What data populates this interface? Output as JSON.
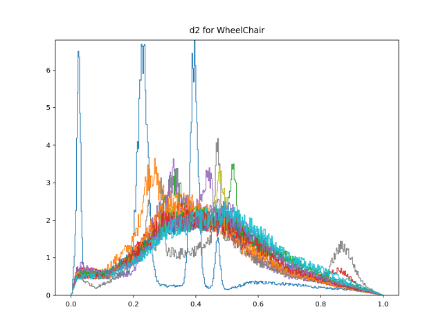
{
  "chart_data": {
    "type": "line",
    "step": true,
    "title": "d2 for WheelChair",
    "xlabel": "",
    "ylabel": "",
    "xlim": [
      -0.05,
      1.05
    ],
    "ylim": [
      0,
      6.8
    ],
    "xticks": [
      0.0,
      0.2,
      0.4,
      0.6,
      0.8,
      1.0
    ],
    "xtick_labels": [
      "0.0",
      "0.2",
      "0.4",
      "0.6",
      "0.8",
      "1.0"
    ],
    "yticks": [
      0,
      1,
      2,
      3,
      4,
      5,
      6
    ],
    "ytick_labels": [
      "0",
      "1",
      "2",
      "3",
      "4",
      "5",
      "6"
    ],
    "grid": false,
    "legend": "none",
    "series": [
      {
        "color": "#1f77b4",
        "peaks": [
          [
            0.025,
            5.5,
            0.006
          ],
          [
            0.23,
            5.9,
            0.016
          ],
          [
            0.395,
            6.4,
            0.012
          ],
          [
            0.47,
            1.3,
            0.008
          ]
        ],
        "baseline": [
          [
            0.0,
            0.0
          ],
          [
            0.01,
            0.6
          ],
          [
            0.06,
            0.5
          ],
          [
            0.15,
            0.6
          ],
          [
            0.3,
            0.25
          ],
          [
            0.36,
            0.25
          ],
          [
            0.43,
            0.2
          ],
          [
            0.5,
            0.15
          ],
          [
            0.58,
            0.35
          ],
          [
            0.7,
            0.3
          ],
          [
            0.8,
            0.2
          ],
          [
            0.9,
            0.15
          ],
          [
            1.0,
            0.0
          ]
        ]
      },
      {
        "color": "#ff7f0e",
        "peaks": [
          [
            0.25,
            1.0,
            0.02
          ]
        ],
        "baseline": [
          [
            0.0,
            0.0
          ],
          [
            0.02,
            0.7
          ],
          [
            0.1,
            0.6
          ],
          [
            0.2,
            1.4
          ],
          [
            0.27,
            2.6
          ],
          [
            0.35,
            2.5
          ],
          [
            0.45,
            2.1
          ],
          [
            0.55,
            1.2
          ],
          [
            0.65,
            0.7
          ],
          [
            0.8,
            0.35
          ],
          [
            0.95,
            0.1
          ],
          [
            1.0,
            0.0
          ]
        ]
      },
      {
        "color": "#2ca02c",
        "peaks": [
          [
            0.52,
            1.3,
            0.01
          ],
          [
            0.33,
            1.0,
            0.02
          ]
        ],
        "baseline": [
          [
            0.0,
            0.0
          ],
          [
            0.02,
            0.6
          ],
          [
            0.1,
            0.5
          ],
          [
            0.2,
            1.0
          ],
          [
            0.3,
            2.0
          ],
          [
            0.4,
            2.2
          ],
          [
            0.5,
            2.1
          ],
          [
            0.6,
            1.4
          ],
          [
            0.7,
            1.0
          ],
          [
            0.8,
            0.5
          ],
          [
            0.95,
            0.15
          ],
          [
            1.0,
            0.0
          ]
        ]
      },
      {
        "color": "#d62728",
        "peaks": [
          [
            0.86,
            0.3,
            0.03
          ]
        ],
        "baseline": [
          [
            0.0,
            0.0
          ],
          [
            0.02,
            0.7
          ],
          [
            0.12,
            0.6
          ],
          [
            0.22,
            1.3
          ],
          [
            0.3,
            2.2
          ],
          [
            0.4,
            2.1
          ],
          [
            0.5,
            1.7
          ],
          [
            0.6,
            1.0
          ],
          [
            0.7,
            0.7
          ],
          [
            0.78,
            0.5
          ],
          [
            0.9,
            0.3
          ],
          [
            1.0,
            0.0
          ]
        ]
      },
      {
        "color": "#9467bd",
        "peaks": [
          [
            0.33,
            1.0,
            0.015
          ],
          [
            0.44,
            1.2,
            0.012
          ]
        ],
        "baseline": [
          [
            0.0,
            0.0
          ],
          [
            0.03,
            0.8
          ],
          [
            0.1,
            0.5
          ],
          [
            0.2,
            0.6
          ],
          [
            0.28,
            2.2
          ],
          [
            0.4,
            2.3
          ],
          [
            0.52,
            2.2
          ],
          [
            0.58,
            1.0
          ],
          [
            0.7,
            0.5
          ],
          [
            0.85,
            0.3
          ],
          [
            1.0,
            0.0
          ]
        ]
      },
      {
        "color": "#8c564b",
        "peaks": [],
        "baseline": [
          [
            0.0,
            0.0
          ],
          [
            0.02,
            0.6
          ],
          [
            0.12,
            0.5
          ],
          [
            0.22,
            1.2
          ],
          [
            0.3,
            1.9
          ],
          [
            0.4,
            2.0
          ],
          [
            0.5,
            1.8
          ],
          [
            0.6,
            1.2
          ],
          [
            0.7,
            0.6
          ],
          [
            0.85,
            0.25
          ],
          [
            1.0,
            0.0
          ]
        ]
      },
      {
        "color": "#e377c2",
        "peaks": [],
        "baseline": [
          [
            0.0,
            0.0
          ],
          [
            0.02,
            0.5
          ],
          [
            0.12,
            0.5
          ],
          [
            0.22,
            1.1
          ],
          [
            0.3,
            2.0
          ],
          [
            0.4,
            2.2
          ],
          [
            0.5,
            2.0
          ],
          [
            0.6,
            1.3
          ],
          [
            0.7,
            0.6
          ],
          [
            0.85,
            0.3
          ],
          [
            1.0,
            0.0
          ]
        ]
      },
      {
        "color": "#7f7f7f",
        "peaks": [
          [
            0.29,
            1.8,
            0.006
          ],
          [
            0.47,
            2.4,
            0.008
          ],
          [
            0.87,
            0.9,
            0.03
          ],
          [
            0.25,
            1.0,
            0.008
          ]
        ],
        "baseline": [
          [
            0.0,
            0.0
          ],
          [
            0.02,
            0.5
          ],
          [
            0.08,
            0.2
          ],
          [
            0.15,
            0.5
          ],
          [
            0.25,
            1.3
          ],
          [
            0.35,
            1.1
          ],
          [
            0.4,
            1.2
          ],
          [
            0.5,
            1.6
          ],
          [
            0.6,
            0.9
          ],
          [
            0.72,
            0.5
          ],
          [
            0.8,
            0.4
          ],
          [
            0.9,
            0.4
          ],
          [
            1.0,
            0.0
          ]
        ]
      },
      {
        "color": "#bcbd22",
        "peaks": [
          [
            0.48,
            1.2,
            0.01
          ]
        ],
        "baseline": [
          [
            0.0,
            0.0
          ],
          [
            0.02,
            0.6
          ],
          [
            0.12,
            0.6
          ],
          [
            0.22,
            1.1
          ],
          [
            0.3,
            2.1
          ],
          [
            0.4,
            2.1
          ],
          [
            0.5,
            2.0
          ],
          [
            0.6,
            1.2
          ],
          [
            0.7,
            0.7
          ],
          [
            0.85,
            0.3
          ],
          [
            1.0,
            0.0
          ]
        ]
      },
      {
        "color": "#17becf",
        "peaks": [],
        "baseline": [
          [
            0.0,
            0.0
          ],
          [
            0.02,
            0.6
          ],
          [
            0.12,
            0.6
          ],
          [
            0.22,
            1.0
          ],
          [
            0.3,
            1.7
          ],
          [
            0.4,
            1.9
          ],
          [
            0.5,
            2.1
          ],
          [
            0.6,
            1.6
          ],
          [
            0.7,
            1.0
          ],
          [
            0.8,
            0.7
          ],
          [
            0.9,
            0.35
          ],
          [
            1.0,
            0.0
          ]
        ]
      },
      {
        "color": "#1f77b4",
        "peaks": [],
        "baseline": [
          [
            0.0,
            0.0
          ],
          [
            0.02,
            0.5
          ],
          [
            0.12,
            0.6
          ],
          [
            0.22,
            1.2
          ],
          [
            0.3,
            1.8
          ],
          [
            0.4,
            2.0
          ],
          [
            0.5,
            1.9
          ],
          [
            0.6,
            1.4
          ],
          [
            0.7,
            0.8
          ],
          [
            0.85,
            0.3
          ],
          [
            1.0,
            0.0
          ]
        ]
      },
      {
        "color": "#ff7f0e",
        "peaks": [],
        "baseline": [
          [
            0.0,
            0.0
          ],
          [
            0.02,
            0.6
          ],
          [
            0.12,
            0.5
          ],
          [
            0.22,
            1.3
          ],
          [
            0.3,
            2.3
          ],
          [
            0.4,
            2.2
          ],
          [
            0.5,
            1.8
          ],
          [
            0.6,
            1.1
          ],
          [
            0.7,
            0.6
          ],
          [
            0.85,
            0.25
          ],
          [
            1.0,
            0.0
          ]
        ]
      },
      {
        "color": "#2ca02c",
        "peaks": [],
        "baseline": [
          [
            0.0,
            0.0
          ],
          [
            0.02,
            0.6
          ],
          [
            0.12,
            0.6
          ],
          [
            0.22,
            1.1
          ],
          [
            0.3,
            1.9
          ],
          [
            0.4,
            2.1
          ],
          [
            0.5,
            2.0
          ],
          [
            0.6,
            1.4
          ],
          [
            0.7,
            0.9
          ],
          [
            0.85,
            0.4
          ],
          [
            1.0,
            0.0
          ]
        ]
      },
      {
        "color": "#d62728",
        "peaks": [],
        "baseline": [
          [
            0.0,
            0.0
          ],
          [
            0.02,
            0.5
          ],
          [
            0.12,
            0.5
          ],
          [
            0.22,
            1.2
          ],
          [
            0.3,
            2.0
          ],
          [
            0.4,
            2.0
          ],
          [
            0.5,
            1.9
          ],
          [
            0.6,
            1.3
          ],
          [
            0.7,
            0.7
          ],
          [
            0.85,
            0.3
          ],
          [
            1.0,
            0.0
          ]
        ]
      },
      {
        "color": "#9467bd",
        "peaks": [],
        "baseline": [
          [
            0.0,
            0.0
          ],
          [
            0.02,
            0.7
          ],
          [
            0.12,
            0.6
          ],
          [
            0.22,
            1.0
          ],
          [
            0.3,
            1.8
          ],
          [
            0.4,
            2.0
          ],
          [
            0.5,
            2.1
          ],
          [
            0.6,
            1.5
          ],
          [
            0.7,
            0.8
          ],
          [
            0.85,
            0.35
          ],
          [
            1.0,
            0.0
          ]
        ]
      },
      {
        "color": "#17becf",
        "peaks": [],
        "baseline": [
          [
            0.0,
            0.0
          ],
          [
            0.02,
            0.5
          ],
          [
            0.12,
            0.5
          ],
          [
            0.22,
            1.0
          ],
          [
            0.3,
            1.7
          ],
          [
            0.4,
            2.0
          ],
          [
            0.5,
            2.2
          ],
          [
            0.6,
            1.7
          ],
          [
            0.7,
            1.0
          ],
          [
            0.85,
            0.4
          ],
          [
            1.0,
            0.0
          ]
        ]
      }
    ]
  }
}
